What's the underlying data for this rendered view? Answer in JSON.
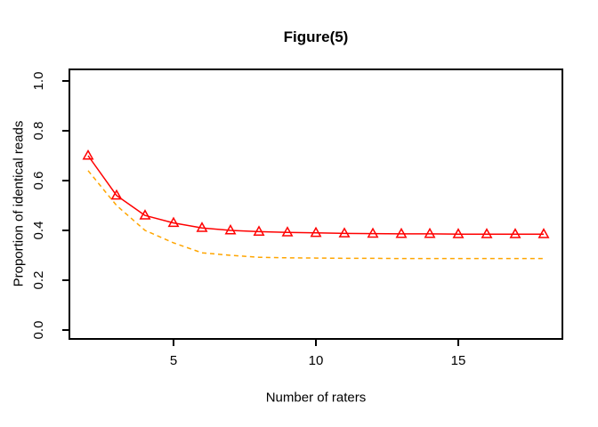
{
  "chart_data": {
    "type": "line",
    "title": "Figure(5)",
    "xlabel": "Number of raters",
    "ylabel": "Proportion of identical reads",
    "x": [
      2,
      3,
      4,
      5,
      6,
      7,
      8,
      9,
      10,
      11,
      12,
      13,
      14,
      15,
      16,
      17,
      18
    ],
    "series": [
      {
        "name": "series-1-solid-triangles",
        "color": "#ff0000",
        "style": "solid",
        "marker": "open-triangle",
        "values": [
          0.7,
          0.54,
          0.46,
          0.43,
          0.41,
          0.4,
          0.395,
          0.392,
          0.39,
          0.388,
          0.387,
          0.386,
          0.386,
          0.385,
          0.385,
          0.385,
          0.385
        ]
      },
      {
        "name": "series-2-dashed",
        "color": "#ffa500",
        "style": "dashed",
        "marker": "none",
        "values": [
          0.64,
          0.5,
          0.4,
          0.35,
          0.31,
          0.3,
          0.292,
          0.29,
          0.289,
          0.288,
          0.288,
          0.287,
          0.287,
          0.287,
          0.287,
          0.287,
          0.287
        ]
      }
    ],
    "x_ticks": [
      5,
      10,
      15
    ],
    "y_ticks": [
      "0.0",
      "0.2",
      "0.4",
      "0.6",
      "0.8",
      "1.0"
    ],
    "xlim": [
      2,
      18
    ],
    "ylim": [
      0,
      1
    ],
    "grid": false,
    "legend": "none",
    "background": "#ffffff",
    "axis_color": "#000000"
  }
}
